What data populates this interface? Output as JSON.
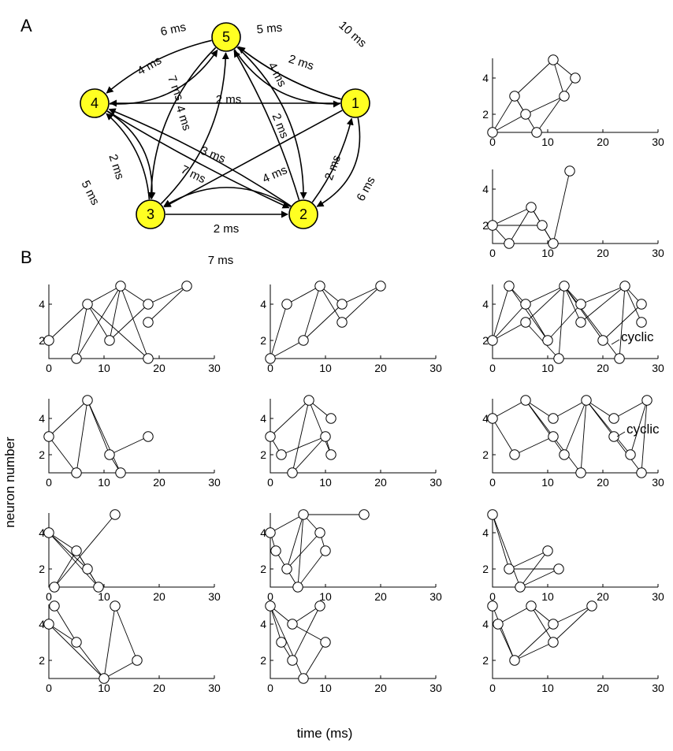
{
  "panels": {
    "a": "A",
    "b": "B"
  },
  "colors": {
    "node_fill": "#ffff22",
    "line": "#000000",
    "dot_fill": "#ffffff"
  },
  "network": {
    "nodes": [
      {
        "id": "1",
        "label": "1"
      },
      {
        "id": "2",
        "label": "2"
      },
      {
        "id": "3",
        "label": "3"
      },
      {
        "id": "4",
        "label": "4"
      },
      {
        "id": "5",
        "label": "5"
      }
    ],
    "connections": [
      {
        "from": "4",
        "to": "5",
        "delay": "6 ms"
      },
      {
        "from": "5",
        "to": "1",
        "delay": "10 ms"
      },
      {
        "from": "5",
        "to": "4",
        "delay": "4 ms"
      },
      {
        "from": "1",
        "to": "5",
        "delay": "5 ms"
      },
      {
        "from": "1",
        "to": "5",
        "delay": "2 ms"
      },
      {
        "from": "1",
        "to": "4",
        "delay": "2 ms"
      },
      {
        "from": "3",
        "to": "5",
        "delay": "7 ms"
      },
      {
        "from": "5",
        "to": "3",
        "delay": "4 ms"
      },
      {
        "from": "5",
        "to": "2",
        "delay": "4 ms"
      },
      {
        "from": "2",
        "to": "5",
        "delay": "2 ms"
      },
      {
        "from": "4",
        "to": "3",
        "delay": "5 ms"
      },
      {
        "from": "3",
        "to": "4",
        "delay": "2 ms"
      },
      {
        "from": "4",
        "to": "2",
        "delay": "3 ms"
      },
      {
        "from": "2",
        "to": "4",
        "delay": "7 ms"
      },
      {
        "from": "1",
        "to": "3",
        "delay": "4 ms"
      },
      {
        "from": "2",
        "to": "1",
        "delay": "2 ms"
      },
      {
        "from": "1",
        "to": "2",
        "delay": "6 ms"
      },
      {
        "from": "3",
        "to": "2",
        "delay": "2 ms"
      },
      {
        "from": "2",
        "to": "3",
        "delay": "7 ms"
      }
    ]
  },
  "axes": {
    "x_ticks": [
      "0",
      "10",
      "20",
      "30"
    ],
    "y_ticks": [
      "2",
      "4"
    ],
    "xlim": [
      0,
      30
    ],
    "ylim": [
      1,
      5
    ],
    "xlabel": "time (ms)",
    "ylabel": "neuron number"
  },
  "chart_data": [
    {
      "type": "scatter",
      "id": "a1",
      "points": [
        [
          0,
          1
        ],
        [
          4,
          3
        ],
        [
          6,
          2
        ],
        [
          8,
          1
        ],
        [
          11,
          5
        ],
        [
          13,
          3
        ],
        [
          15,
          4
        ]
      ],
      "links": [
        [
          0,
          1
        ],
        [
          0,
          2
        ],
        [
          0,
          3
        ],
        [
          1,
          2
        ],
        [
          1,
          3
        ],
        [
          1,
          4
        ],
        [
          2,
          5
        ],
        [
          3,
          6
        ],
        [
          4,
          5
        ],
        [
          4,
          6
        ]
      ]
    },
    {
      "type": "scatter",
      "id": "a2",
      "points": [
        [
          0,
          2
        ],
        [
          3,
          1
        ],
        [
          7,
          3
        ],
        [
          9,
          2
        ],
        [
          11,
          1
        ],
        [
          14,
          5
        ]
      ],
      "links": [
        [
          0,
          1
        ],
        [
          0,
          2
        ],
        [
          0,
          3
        ],
        [
          1,
          2
        ],
        [
          2,
          3
        ],
        [
          2,
          4
        ],
        [
          3,
          4
        ],
        [
          4,
          5
        ]
      ]
    },
    {
      "type": "scatter",
      "id": "r1c1",
      "points": [
        [
          0,
          2
        ],
        [
          5,
          1
        ],
        [
          7,
          4
        ],
        [
          11,
          2
        ],
        [
          13,
          5
        ],
        [
          18,
          4
        ],
        [
          18,
          3
        ],
        [
          18,
          1
        ],
        [
          25,
          5
        ]
      ],
      "links": [
        [
          0,
          2
        ],
        [
          1,
          2
        ],
        [
          1,
          4
        ],
        [
          2,
          4
        ],
        [
          2,
          3
        ],
        [
          2,
          7
        ],
        [
          3,
          4
        ],
        [
          3,
          5
        ],
        [
          4,
          5
        ],
        [
          4,
          7
        ],
        [
          5,
          8
        ],
        [
          6,
          8
        ]
      ]
    },
    {
      "type": "scatter",
      "id": "r1c2",
      "points": [
        [
          0,
          1
        ],
        [
          3,
          4
        ],
        [
          6,
          2
        ],
        [
          9,
          5
        ],
        [
          13,
          4
        ],
        [
          13,
          3
        ],
        [
          20,
          5
        ]
      ],
      "links": [
        [
          0,
          1
        ],
        [
          0,
          2
        ],
        [
          1,
          3
        ],
        [
          2,
          3
        ],
        [
          2,
          4
        ],
        [
          3,
          4
        ],
        [
          3,
          5
        ],
        [
          4,
          6
        ],
        [
          5,
          6
        ]
      ]
    },
    {
      "type": "scatter",
      "id": "r1c3",
      "annotation": "cyclic",
      "points": [
        [
          0,
          2
        ],
        [
          3,
          5
        ],
        [
          6,
          4
        ],
        [
          6,
          3
        ],
        [
          10,
          2
        ],
        [
          12,
          1
        ],
        [
          13,
          5
        ],
        [
          16,
          4
        ],
        [
          16,
          3
        ],
        [
          20,
          2
        ],
        [
          23,
          1
        ],
        [
          24,
          5
        ],
        [
          27,
          4
        ],
        [
          27,
          3
        ]
      ],
      "links": [
        [
          0,
          1
        ],
        [
          0,
          2
        ],
        [
          0,
          3
        ],
        [
          1,
          2
        ],
        [
          1,
          4
        ],
        [
          2,
          4
        ],
        [
          2,
          6
        ],
        [
          3,
          5
        ],
        [
          3,
          6
        ],
        [
          4,
          7
        ],
        [
          5,
          6
        ],
        [
          6,
          7
        ],
        [
          6,
          8
        ],
        [
          6,
          9
        ],
        [
          6,
          10
        ],
        [
          7,
          11
        ],
        [
          8,
          11
        ],
        [
          9,
          12
        ],
        [
          10,
          11
        ],
        [
          11,
          12
        ],
        [
          11,
          13
        ]
      ]
    },
    {
      "type": "scatter",
      "id": "r2c1",
      "points": [
        [
          0,
          3
        ],
        [
          5,
          1
        ],
        [
          7,
          5
        ],
        [
          11,
          2
        ],
        [
          13,
          1
        ],
        [
          18,
          3
        ]
      ],
      "links": [
        [
          0,
          1
        ],
        [
          0,
          2
        ],
        [
          1,
          2
        ],
        [
          2,
          3
        ],
        [
          2,
          4
        ],
        [
          3,
          4
        ],
        [
          3,
          5
        ]
      ]
    },
    {
      "type": "scatter",
      "id": "r2c2",
      "points": [
        [
          0,
          3
        ],
        [
          2,
          2
        ],
        [
          4,
          1
        ],
        [
          7,
          5
        ],
        [
          10,
          3
        ],
        [
          11,
          4
        ],
        [
          11,
          2
        ]
      ],
      "links": [
        [
          0,
          1
        ],
        [
          0,
          3
        ],
        [
          1,
          4
        ],
        [
          2,
          3
        ],
        [
          2,
          4
        ],
        [
          3,
          5
        ],
        [
          3,
          6
        ],
        [
          4,
          6
        ]
      ]
    },
    {
      "type": "scatter",
      "id": "r2c3",
      "annotation": "cyclic",
      "points": [
        [
          0,
          4
        ],
        [
          4,
          2
        ],
        [
          6,
          5
        ],
        [
          11,
          3
        ],
        [
          11,
          4
        ],
        [
          13,
          2
        ],
        [
          16,
          1
        ],
        [
          17,
          5
        ],
        [
          22,
          3
        ],
        [
          22,
          4
        ],
        [
          25,
          2
        ],
        [
          27,
          1
        ],
        [
          28,
          5
        ]
      ],
      "links": [
        [
          0,
          1
        ],
        [
          0,
          2
        ],
        [
          1,
          3
        ],
        [
          2,
          3
        ],
        [
          2,
          4
        ],
        [
          2,
          5
        ],
        [
          3,
          6
        ],
        [
          4,
          7
        ],
        [
          5,
          7
        ],
        [
          6,
          7
        ],
        [
          7,
          8
        ],
        [
          7,
          9
        ],
        [
          7,
          10
        ],
        [
          8,
          11
        ],
        [
          9,
          12
        ],
        [
          10,
          12
        ],
        [
          11,
          12
        ]
      ]
    },
    {
      "type": "scatter",
      "id": "r3c1",
      "points": [
        [
          0,
          4
        ],
        [
          1,
          1
        ],
        [
          5,
          3
        ],
        [
          7,
          2
        ],
        [
          9,
          1
        ],
        [
          12,
          5
        ]
      ],
      "links": [
        [
          0,
          2
        ],
        [
          0,
          3
        ],
        [
          0,
          4
        ],
        [
          1,
          2
        ],
        [
          1,
          5
        ],
        [
          2,
          3
        ],
        [
          2,
          4
        ],
        [
          3,
          4
        ]
      ]
    },
    {
      "type": "scatter",
      "id": "r3c2",
      "points": [
        [
          0,
          4
        ],
        [
          1,
          3
        ],
        [
          3,
          2
        ],
        [
          5,
          1
        ],
        [
          6,
          5
        ],
        [
          9,
          4
        ],
        [
          10,
          3
        ],
        [
          17,
          5
        ]
      ],
      "links": [
        [
          0,
          1
        ],
        [
          0,
          4
        ],
        [
          1,
          3
        ],
        [
          2,
          4
        ],
        [
          2,
          5
        ],
        [
          3,
          4
        ],
        [
          3,
          6
        ],
        [
          4,
          5
        ],
        [
          4,
          7
        ],
        [
          5,
          6
        ]
      ]
    },
    {
      "type": "scatter",
      "id": "r3c3",
      "points": [
        [
          0,
          5
        ],
        [
          3,
          2
        ],
        [
          5,
          1
        ],
        [
          10,
          3
        ],
        [
          12,
          2
        ]
      ],
      "links": [
        [
          0,
          1
        ],
        [
          0,
          2
        ],
        [
          1,
          3
        ],
        [
          1,
          4
        ],
        [
          2,
          3
        ],
        [
          2,
          4
        ]
      ]
    },
    {
      "type": "scatter",
      "id": "r4c1",
      "points": [
        [
          0,
          4
        ],
        [
          1,
          5
        ],
        [
          5,
          3
        ],
        [
          10,
          1
        ],
        [
          12,
          5
        ],
        [
          16,
          2
        ]
      ],
      "links": [
        [
          0,
          2
        ],
        [
          0,
          3
        ],
        [
          1,
          2
        ],
        [
          2,
          3
        ],
        [
          3,
          4
        ],
        [
          3,
          5
        ],
        [
          4,
          5
        ]
      ]
    },
    {
      "type": "scatter",
      "id": "r4c2",
      "points": [
        [
          0,
          5
        ],
        [
          2,
          3
        ],
        [
          4,
          4
        ],
        [
          4,
          2
        ],
        [
          6,
          1
        ],
        [
          9,
          5
        ],
        [
          10,
          3
        ]
      ],
      "links": [
        [
          0,
          1
        ],
        [
          0,
          2
        ],
        [
          0,
          4
        ],
        [
          1,
          3
        ],
        [
          2,
          5
        ],
        [
          2,
          6
        ],
        [
          3,
          5
        ],
        [
          4,
          6
        ]
      ]
    },
    {
      "type": "scatter",
      "id": "r4c3",
      "points": [
        [
          0,
          5
        ],
        [
          1,
          4
        ],
        [
          4,
          2
        ],
        [
          7,
          5
        ],
        [
          11,
          4
        ],
        [
          11,
          3
        ],
        [
          18,
          5
        ]
      ],
      "links": [
        [
          0,
          2
        ],
        [
          1,
          2
        ],
        [
          1,
          3
        ],
        [
          2,
          4
        ],
        [
          2,
          5
        ],
        [
          3,
          4
        ],
        [
          3,
          5
        ],
        [
          4,
          6
        ],
        [
          5,
          6
        ]
      ]
    }
  ]
}
